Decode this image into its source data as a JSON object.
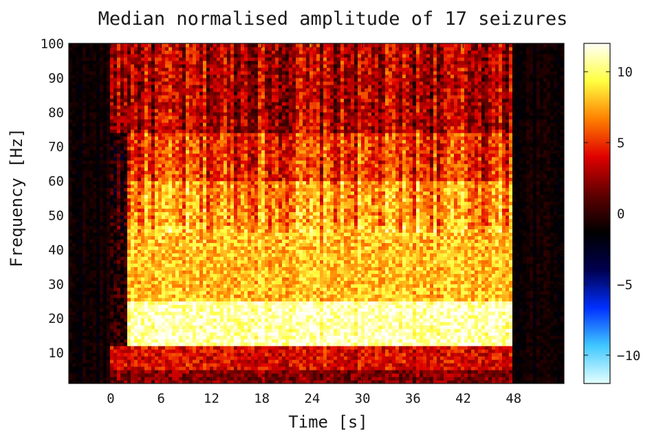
{
  "chart_data": {
    "type": "heatmap",
    "title": "Median normalised amplitude of 17 seizures",
    "xlabel": "Time [s]",
    "ylabel": "Frequency [Hz]",
    "xlim": [
      -5,
      54
    ],
    "ylim": [
      1,
      100
    ],
    "x_ticks": [
      0,
      6,
      12,
      18,
      24,
      30,
      36,
      42,
      48
    ],
    "y_ticks": [
      10,
      20,
      30,
      40,
      50,
      60,
      70,
      80,
      90,
      100
    ],
    "colorbar": {
      "range": [
        -12,
        12
      ],
      "ticks": [
        10,
        5,
        0,
        -5,
        -10
      ],
      "tick_labels": [
        "10",
        "5",
        "0",
        "−5",
        "−10"
      ],
      "colormap": [
        "#e6ffff",
        "#40c8ff",
        "#0030ff",
        "#000050",
        "#000000",
        "#600000",
        "#e00000",
        "#ff8000",
        "#ffff40",
        "#fffff8"
      ]
    },
    "regions": [
      {
        "time": [
          -5,
          0
        ],
        "frequency": [
          1,
          100
        ],
        "median_amplitude": -1
      },
      {
        "time": [
          48,
          54
        ],
        "frequency": [
          1,
          100
        ],
        "median_amplitude": -1
      },
      {
        "time": [
          0,
          48
        ],
        "frequency": [
          1,
          5
        ],
        "median_amplitude": 2
      },
      {
        "time": [
          0,
          48
        ],
        "frequency": [
          5,
          12
        ],
        "median_amplitude": 4
      },
      {
        "time": [
          2,
          48
        ],
        "frequency": [
          12,
          25
        ],
        "median_amplitude": 11
      },
      {
        "time": [
          2,
          48
        ],
        "frequency": [
          25,
          47
        ],
        "median_amplitude": 8
      },
      {
        "time": [
          2,
          48
        ],
        "frequency": [
          47,
          60
        ],
        "median_amplitude": 7
      },
      {
        "time": [
          2,
          48
        ],
        "frequency": [
          60,
          74
        ],
        "median_amplitude": 5
      },
      {
        "time": [
          0,
          48
        ],
        "frequency": [
          74,
          100
        ],
        "median_amplitude": 3
      }
    ]
  }
}
